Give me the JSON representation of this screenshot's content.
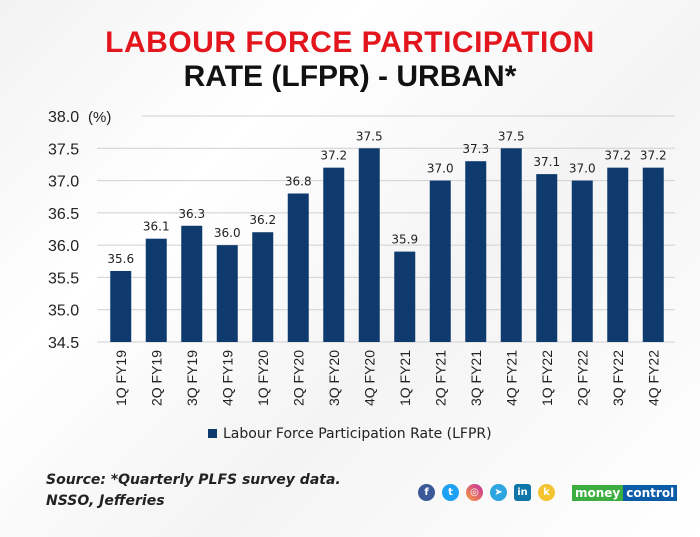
{
  "title_line1": "LABOUR FORCE PARTICIPATION",
  "title_line2": "RATE (LFPR) - URBAN*",
  "source_line1": "Source: *Quarterly PLFS survey data.",
  "source_line2": "NSSO, Jefferies",
  "brand": {
    "part1": "money",
    "part2": "control",
    "green": "#3cae3f",
    "blue": "#0b5ca8"
  },
  "social_icons": [
    "facebook-icon",
    "twitter-icon",
    "instagram-icon",
    "telegram-icon",
    "linkedin-icon",
    "koo-icon"
  ],
  "chart_data": {
    "type": "bar",
    "title": "LABOUR FORCE PARTICIPATION RATE (LFPR) - URBAN*",
    "unit_label": "(%)",
    "categories": [
      "1Q FY19",
      "2Q FY19",
      "3Q FY19",
      "4Q FY19",
      "1Q FY20",
      "2Q FY20",
      "3Q FY20",
      "4Q FY20",
      "1Q FY21",
      "2Q FY21",
      "3Q FY21",
      "4Q FY21",
      "1Q FY22",
      "2Q FY22",
      "3Q FY22",
      "4Q FY22"
    ],
    "series": [
      {
        "name": "Labour Force Participation Rate (LFPR)",
        "values": [
          35.6,
          36.1,
          36.3,
          36.0,
          36.2,
          36.8,
          37.2,
          37.5,
          35.9,
          37.0,
          37.3,
          37.5,
          37.1,
          37.0,
          37.2,
          37.2
        ]
      }
    ],
    "ylim": [
      34.5,
      38.0
    ],
    "yticks": [
      "34.5",
      "35.0",
      "35.5",
      "36.0",
      "36.5",
      "37.0",
      "37.5",
      "38.0"
    ],
    "grid": true,
    "legend": "bottom",
    "bar_color": "#0e3a6e"
  }
}
